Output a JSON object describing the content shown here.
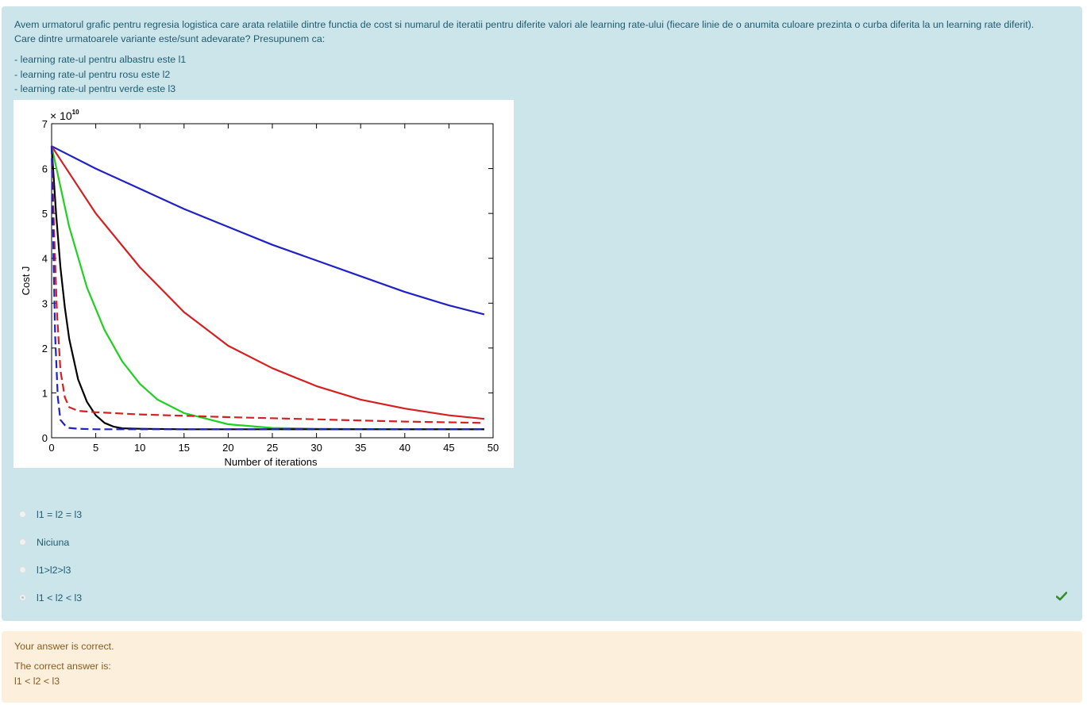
{
  "question": {
    "line1": "Avem urmatorul grafic pentru regresia logistica care arata relatiile dintre functia de cost si numarul de iteratii pentru diferite valori ale learning rate-ului (fiecare linie de o anumita culoare prezinta o curba diferita la un learning rate diferit).",
    "line2": "Care dintre urmatoarele variante este/sunt adevarate? Presupunem ca:",
    "assumptions": [
      "- learning rate-ul pentru albastru este l1",
      "- learning rate-ul pentru rosu este l2",
      "- learning rate-ul pentru verde este l3"
    ]
  },
  "options": [
    {
      "label": "l1 = l2 = l3",
      "selected": false
    },
    {
      "label": "Niciuna",
      "selected": false
    },
    {
      "label": "l1>l2>l3",
      "selected": false
    },
    {
      "label": "l1 < l2 < l3",
      "selected": true
    }
  ],
  "correct_icon": "checkmark-icon",
  "feedback": {
    "status": "Your answer is correct.",
    "correct_label": "The correct answer is:",
    "correct_value": "l1 < l2 < l3"
  },
  "colors": {
    "question_bg": "#cce5ea",
    "feedback_bg": "#fcefdc",
    "check": "#3a8a2e"
  },
  "chart_data": {
    "type": "line",
    "title": "",
    "xlabel": "Number of iterations",
    "ylabel": "Cost J",
    "y_multiplier": "× 10^10",
    "y_multiplier_base": "× 10",
    "y_multiplier_exp": "10",
    "xlim": [
      0,
      50
    ],
    "ylim": [
      0,
      7
    ],
    "xticks": [
      0,
      5,
      10,
      15,
      20,
      25,
      30,
      35,
      40,
      45,
      50
    ],
    "yticks": [
      0,
      1,
      2,
      3,
      4,
      5,
      6,
      7
    ],
    "grid": false,
    "series": [
      {
        "color": "#2020c8",
        "style": "solid",
        "x": [
          0,
          5,
          10,
          15,
          20,
          25,
          30,
          35,
          40,
          45,
          49
        ],
        "y": [
          6.5,
          6.0,
          5.55,
          5.1,
          4.7,
          4.3,
          3.95,
          3.6,
          3.25,
          2.95,
          2.75
        ]
      },
      {
        "color": "#d42020",
        "style": "solid",
        "x": [
          0,
          2,
          5,
          10,
          15,
          20,
          25,
          30,
          35,
          40,
          45,
          49
        ],
        "y": [
          6.5,
          5.9,
          5.0,
          3.8,
          2.8,
          2.05,
          1.55,
          1.15,
          0.85,
          0.65,
          0.5,
          0.42
        ]
      },
      {
        "color": "#20d020",
        "style": "solid",
        "x": [
          0,
          2,
          4,
          6,
          8,
          10,
          12,
          15,
          20,
          25,
          30,
          40,
          49
        ],
        "y": [
          6.5,
          4.7,
          3.35,
          2.4,
          1.7,
          1.2,
          0.85,
          0.55,
          0.3,
          0.22,
          0.2,
          0.19,
          0.19
        ]
      },
      {
        "color": "#000000",
        "style": "solid",
        "x": [
          0,
          0.5,
          1,
          1.5,
          2,
          3,
          4,
          5,
          6,
          7,
          8,
          10,
          15,
          20,
          49
        ],
        "y": [
          6.5,
          5.0,
          3.8,
          2.9,
          2.2,
          1.3,
          0.8,
          0.5,
          0.33,
          0.25,
          0.21,
          0.2,
          0.19,
          0.19,
          0.19
        ]
      },
      {
        "color": "#d42020",
        "style": "dashed",
        "x": [
          0,
          0.3,
          0.6,
          1,
          1.5,
          2,
          3,
          5,
          10,
          20,
          30,
          40,
          49
        ],
        "y": [
          6.5,
          4.5,
          2.8,
          1.5,
          0.9,
          0.68,
          0.6,
          0.57,
          0.52,
          0.46,
          0.41,
          0.36,
          0.33
        ]
      },
      {
        "color": "#2020c8",
        "style": "dashed",
        "x": [
          0,
          0.2,
          0.4,
          0.7,
          1,
          1.5,
          2,
          3,
          5,
          10,
          20,
          49
        ],
        "y": [
          6.5,
          4.2,
          2.3,
          0.9,
          0.4,
          0.28,
          0.22,
          0.2,
          0.19,
          0.19,
          0.19,
          0.19
        ]
      }
    ]
  }
}
